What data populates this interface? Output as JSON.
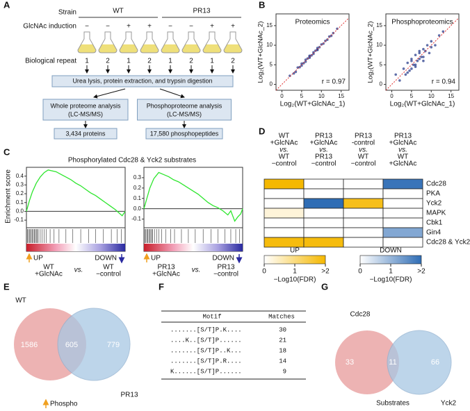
{
  "labels": [
    "A",
    "B",
    "C",
    "D",
    "E",
    "F",
    "G"
  ],
  "panel_a": {
    "strain_label": "Strain",
    "strains": [
      "WT",
      "PR13"
    ],
    "induction_label": "GlcNAc induction",
    "induction": [
      "−",
      "−",
      "+",
      "+",
      "−",
      "−",
      "+",
      "+"
    ],
    "repeat_label": "Biological repeat",
    "repeats": [
      "1",
      "2",
      "1",
      "2",
      "1",
      "2",
      "1",
      "2"
    ],
    "step": "Urea lysis, protein extraction, and trypsin digestion",
    "branches": [
      {
        "title": "Whole proteome analysis",
        "method": "(LC-MS/MS)",
        "result": "3,434 proteins"
      },
      {
        "title": "Phosphoproteome analysis",
        "method": "(LC-MS/MS)",
        "result": "17,580 phosphopeptides"
      }
    ]
  },
  "panel_b": {
    "plots": [
      {
        "type": "scatter",
        "title": "Proteomics",
        "x_label": "Log₂(WT+GlcNAc_1)",
        "y_label": "Log₂(WT+GlcNAc_2)",
        "annotation": "r = 0.97",
        "color": "#2b3f8c",
        "xlim": [
          -1.5,
          17
        ],
        "ylim": [
          -1.5,
          18
        ],
        "xticks": [
          0,
          5,
          10,
          15
        ],
        "yticks": [
          0,
          5,
          10,
          15
        ],
        "x": [
          2,
          3,
          4,
          4.5,
          5,
          5.5,
          6,
          6,
          6.5,
          7,
          7,
          7.5,
          8,
          8,
          8.5,
          9,
          9,
          9.5,
          10,
          10.5,
          11,
          11.5,
          12,
          12.5,
          13,
          3.5,
          5,
          7,
          9,
          14
        ],
        "y": [
          2.2,
          2.8,
          4.3,
          4.4,
          5.3,
          5.4,
          5.8,
          6.3,
          6.6,
          6.8,
          7.3,
          7.4,
          8.2,
          7.8,
          8.6,
          8.8,
          9.3,
          9.5,
          10.2,
          10.4,
          11.1,
          11.4,
          12.2,
          12.4,
          13.1,
          3.2,
          4.8,
          7.1,
          8.9,
          14.2
        ]
      },
      {
        "type": "scatter",
        "title": "Phosphoproteomics",
        "x_label": "Log₂(WT+GlcNAc_1)",
        "y_label": "Log₂(WT+GlcNAc_2)",
        "annotation": "r = 0.94",
        "color": "#2b3f8c",
        "xlim": [
          -1.5,
          17
        ],
        "ylim": [
          -1.5,
          18
        ],
        "xticks": [
          0,
          5,
          10,
          15
        ],
        "yticks": [
          0,
          5,
          10,
          15
        ],
        "x": [
          1,
          2,
          3,
          3.5,
          4,
          4.5,
          5,
          5,
          5.5,
          6,
          6,
          6.5,
          7,
          7,
          7.5,
          8,
          8,
          8.5,
          9,
          9.5,
          10,
          11,
          12,
          13,
          4,
          5,
          6,
          7,
          8,
          10
        ],
        "y": [
          2.5,
          1,
          4,
          2.5,
          5.5,
          3.5,
          6,
          4,
          5,
          7.5,
          5,
          6,
          8,
          6.5,
          7,
          9,
          7,
          8.5,
          10,
          8,
          11,
          10,
          12.5,
          13.5,
          3,
          6.5,
          4.5,
          8.5,
          6,
          9.5
        ]
      }
    ]
  },
  "panel_c": {
    "title": "Phosphorylated Cdc28 & Yck2 substrates",
    "y_label": "Enrichment score",
    "up_label": "UP",
    "down_label": "DOWN",
    "color": "#2ee62e",
    "plots": [
      {
        "type": "line",
        "xlim": [
          0,
          100
        ],
        "ylim": [
          -0.17,
          0.5
        ],
        "yticks": [
          0.4,
          0.3,
          0.2,
          0.1,
          {
            "value": 0,
            "label": "0.0"
          },
          -0.1
        ],
        "x": [
          0,
          3,
          6,
          10,
          14,
          18,
          22,
          26,
          30,
          35,
          40,
          45,
          50,
          55,
          60,
          65,
          70,
          75,
          80,
          85,
          90,
          94,
          97,
          100
        ],
        "values": [
          0,
          0.12,
          0.22,
          0.32,
          0.39,
          0.44,
          0.47,
          0.46,
          0.45,
          0.42,
          0.39,
          0.36,
          0.32,
          0.29,
          0.25,
          0.21,
          0.18,
          0.14,
          0.1,
          0.06,
          0.02,
          -0.02,
          -0.05,
          0
        ],
        "hits": [
          1,
          2,
          3,
          4,
          5,
          6,
          7,
          8,
          9,
          10,
          11,
          12,
          14,
          16,
          18,
          20,
          24,
          28,
          33,
          40,
          47,
          55,
          63,
          70,
          78,
          86,
          92,
          96
        ],
        "group1": [
          "WT",
          "+GlcNAc"
        ],
        "vs": "vs.",
        "group2": [
          "WT",
          "−control"
        ]
      },
      {
        "type": "line",
        "xlim": [
          0,
          100
        ],
        "ylim": [
          -0.17,
          0.4
        ],
        "yticks": [
          0.3,
          0.2,
          0.1,
          {
            "value": 0,
            "label": "0.0"
          },
          -0.1
        ],
        "x": [
          0,
          3,
          6,
          10,
          15,
          20,
          25,
          30,
          35,
          40,
          45,
          50,
          55,
          60,
          65,
          70,
          75,
          80,
          85,
          88,
          92,
          95,
          98,
          100
        ],
        "values": [
          0,
          0.1,
          0.2,
          0.29,
          0.35,
          0.33,
          0.31,
          0.28,
          0.26,
          0.23,
          0.2,
          0.17,
          0.14,
          0.1,
          0.06,
          0.03,
          0.01,
          -0.02,
          -0.06,
          -0.02,
          -0.12,
          -0.08,
          -0.05,
          0
        ],
        "hits": [
          1,
          2,
          3,
          4,
          5,
          6,
          7,
          8,
          9,
          11,
          13,
          15,
          18,
          22,
          27,
          31,
          38,
          45,
          52,
          60,
          68,
          75,
          82,
          88,
          93,
          97
        ],
        "group1": [
          "PR13",
          "+GlcNAc"
        ],
        "vs": "vs.",
        "group2": [
          "PR13",
          "−control"
        ]
      }
    ]
  },
  "panel_d": {
    "columns": [
      [
        "WT",
        "+GlcNAc",
        "vs.",
        "WT",
        "−control"
      ],
      [
        "PR13",
        "+GlcNAc",
        "vs.",
        "PR13",
        "−control"
      ],
      [
        "PR13",
        "-control",
        "vs.",
        "WT",
        "−control"
      ],
      [
        "PR13",
        "+GlcNAc",
        "vs.",
        "WT",
        "+GlcNAc"
      ]
    ],
    "rows": [
      {
        "name": "Cdc28",
        "values": [
          2,
          null,
          null,
          1.9
        ],
        "direction": [
          "UP",
          null,
          null,
          "DOWN"
        ]
      },
      {
        "name": "PKA",
        "values": [
          null,
          null,
          null,
          null
        ],
        "direction": [
          null,
          null,
          null,
          null
        ]
      },
      {
        "name": "Yck2",
        "values": [
          null,
          2,
          1.8,
          null
        ],
        "direction": [
          null,
          "DOWN",
          "UP",
          null
        ]
      },
      {
        "name": "MAPK",
        "values": [
          0.3,
          null,
          null,
          null
        ],
        "direction": [
          "UP",
          null,
          null,
          null
        ]
      },
      {
        "name": "Cbk1",
        "values": [
          null,
          null,
          null,
          null
        ],
        "direction": [
          null,
          null,
          null,
          null
        ]
      },
      {
        "name": "Gin4",
        "values": [
          null,
          null,
          null,
          1.2
        ],
        "direction": [
          null,
          null,
          null,
          "DOWN"
        ]
      },
      {
        "name": "Cdc28 & Yck2",
        "values": [
          1.9,
          1.9,
          null,
          null
        ],
        "direction": [
          "UP",
          "UP",
          null,
          null
        ]
      }
    ],
    "legend": {
      "UP": {
        "label": "UP",
        "color": "#f5b800",
        "lim": [
          0,
          2
        ],
        "ticks": [
          0,
          1,
          {
            "value": 2,
            "label": ">2"
          }
        ],
        "axis_label": "−Log10(FDR)"
      },
      "DOWN": {
        "label": "DOWN",
        "color": "#2f6db5",
        "lim": [
          0,
          2
        ],
        "ticks": [
          0,
          1,
          {
            "value": 2,
            "label": ">2"
          }
        ],
        "axis_label": "−Log10(FDR)"
      }
    }
  },
  "panel_e": {
    "sets": [
      "WT",
      "PR13"
    ],
    "values": [
      1586,
      605,
      779
    ],
    "note": "Phospho"
  },
  "panel_f": {
    "headers": [
      "Motif",
      "Matches"
    ],
    "rows": [
      [
        ".......[S/T]P.K....",
        30
      ],
      [
        "....K..[S/T]P......",
        21
      ],
      [
        ".......[S/T]P..K...",
        18
      ],
      [
        ".......[S/T]P.R....",
        14
      ],
      [
        "K......[S/T]P......",
        9
      ]
    ]
  },
  "panel_g": {
    "sets": [
      "Cdc28",
      "Yck2"
    ],
    "values": [
      33,
      11,
      66
    ],
    "note": "Substrates"
  }
}
